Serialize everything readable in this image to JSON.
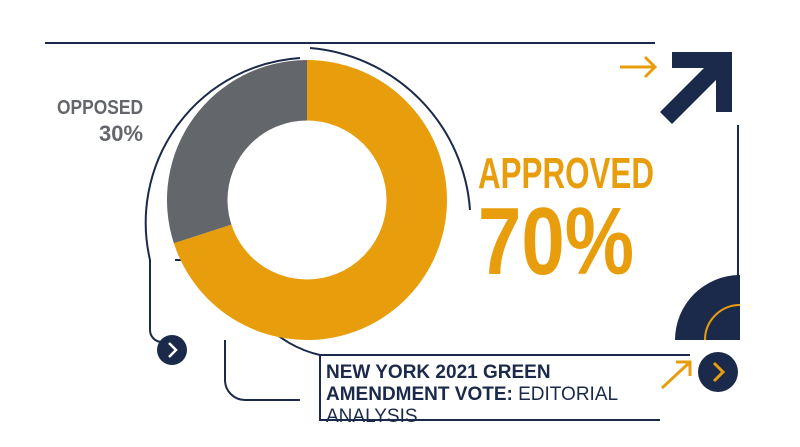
{
  "chart_data": {
    "type": "donut",
    "title": "NEW YORK 2021 GREEN AMENDMENT VOTE:",
    "subtitle": "EDITORIAL ANALYSIS",
    "categories": [
      "APPROVED",
      "OPPOSED"
    ],
    "values": [
      70,
      30
    ],
    "value_labels": [
      "70%",
      "30%"
    ],
    "colors": [
      "#e89e0c",
      "#63666b"
    ]
  }
}
